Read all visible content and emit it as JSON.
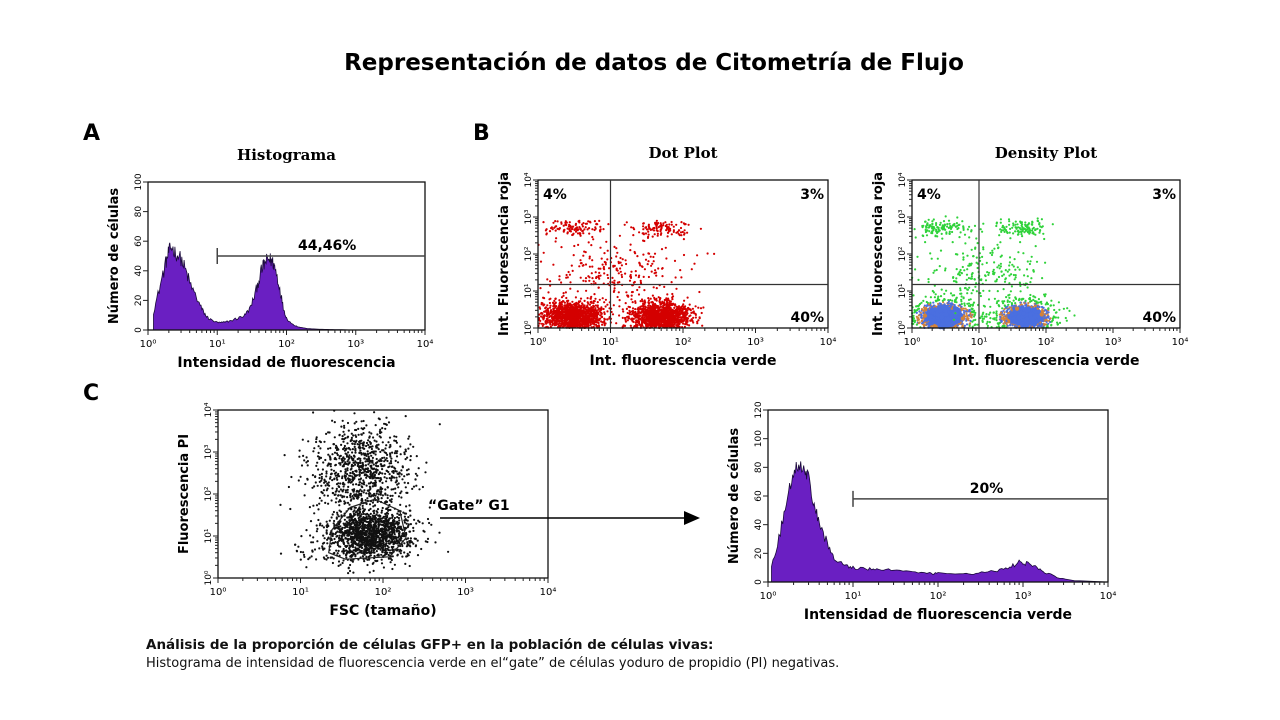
{
  "page": {
    "title": "Representación de datos de Citometría de Flujo",
    "caption_bold": "Análisis de la proporción de células GFP+ en la población de células vivas:",
    "caption_text": "Histograma de intensidad de fluorescencia verde en el“gate” de células yoduro de propidio (PI) negativas."
  },
  "colors": {
    "histogram_fill": "#6a1fc2",
    "dot_plot_red": "#d40000",
    "density_green": "#2fd23a",
    "density_blue": "#4a6fe0",
    "density_orange": "#d2823a",
    "scatter_black": "#111111"
  },
  "chart_data": [
    {
      "panel": "A",
      "type": "area",
      "subtitle": "Histograma",
      "xlabel": "Intensidad de  fluorescencia",
      "ylabel": "Número de células",
      "x_scale": "log",
      "xlim": [
        1,
        10000
      ],
      "ylim": [
        0,
        100
      ],
      "x_ticks": [
        "10⁰",
        "10¹",
        "10²",
        "10³",
        "10⁴"
      ],
      "y_ticks": [
        "0",
        "20",
        "40",
        "60",
        "80",
        "100"
      ],
      "series": [
        {
          "x": [
            1.2,
            1.5,
            1.8,
            2.0,
            2.2,
            2.5,
            3.0,
            3.5,
            4.0,
            5,
            6,
            7,
            8,
            10,
            12,
            15,
            20,
            25,
            30,
            35,
            40,
            45,
            50,
            55,
            60,
            65,
            70,
            80,
            90,
            100,
            120,
            150,
            200,
            300,
            500,
            1000
          ],
          "values": [
            12,
            30,
            45,
            53,
            56,
            52,
            48,
            40,
            32,
            22,
            14,
            9,
            7,
            5,
            5,
            6,
            8,
            10,
            15,
            24,
            34,
            42,
            46,
            48,
            47,
            45,
            40,
            28,
            15,
            8,
            4,
            2,
            1,
            0.5,
            0.3,
            0
          ]
        }
      ],
      "gate": {
        "from": 10,
        "to": 10000,
        "label": "44,46%",
        "y": 50
      }
    },
    {
      "panel": "B",
      "type": "scatter",
      "subtitle": "Dot Plot",
      "xlabel": "Int. fluorescencia verde",
      "ylabel": "Int. Fluorescencia roja",
      "x_scale": "log",
      "y_scale": "log",
      "xlim": [
        1,
        10000
      ],
      "ylim": [
        1,
        10000
      ],
      "x_ticks": [
        "10⁰",
        "10¹",
        "10²",
        "10³",
        "10⁴"
      ],
      "y_ticks": [
        "10⁰",
        "10¹",
        "10²",
        "10³",
        "10⁴"
      ],
      "quadrant_lines": {
        "x": 10,
        "y": 15
      },
      "quadrant_labels": {
        "upper_left": "4%",
        "upper_right": "3%",
        "lower_right": "40%"
      },
      "clusters": [
        {
          "center": [
            3,
            2
          ],
          "spread": [
            0.22,
            0.22
          ],
          "n": 1400,
          "color": "red"
        },
        {
          "center": [
            50,
            2
          ],
          "spread": [
            0.2,
            0.2
          ],
          "n": 1400,
          "color": "red"
        },
        {
          "center": [
            3,
            500
          ],
          "spread": [
            0.2,
            0.12
          ],
          "n": 110,
          "color": "red"
        },
        {
          "center": [
            45,
            480
          ],
          "spread": [
            0.2,
            0.12
          ],
          "n": 110,
          "color": "red"
        },
        {
          "center": [
            12,
            30
          ],
          "spread": [
            0.45,
            0.45
          ],
          "n": 240,
          "color": "red"
        }
      ]
    },
    {
      "panel": "B",
      "type": "scatter",
      "subtitle": "Density Plot",
      "xlabel": "Int. fluorescencia verde",
      "ylabel": "Int. Fluorescencia roja",
      "x_scale": "log",
      "y_scale": "log",
      "xlim": [
        1,
        10000
      ],
      "ylim": [
        1,
        10000
      ],
      "x_ticks": [
        "10⁰",
        "10¹",
        "10²",
        "10³",
        "10⁴"
      ],
      "y_ticks": [
        "10⁰",
        "10¹",
        "10²",
        "10³",
        "10⁴"
      ],
      "quadrant_lines": {
        "x": 10,
        "y": 15
      },
      "quadrant_labels": {
        "upper_left": "4%",
        "upper_right": "3%",
        "lower_right": "40%"
      },
      "clusters": [
        {
          "center": [
            3,
            2
          ],
          "spread": [
            0.24,
            0.24
          ],
          "n": 900,
          "color": "density"
        },
        {
          "center": [
            50,
            2
          ],
          "spread": [
            0.22,
            0.22
          ],
          "n": 900,
          "color": "density"
        },
        {
          "center": [
            3,
            500
          ],
          "spread": [
            0.2,
            0.12
          ],
          "n": 120,
          "color": "green"
        },
        {
          "center": [
            45,
            480
          ],
          "spread": [
            0.2,
            0.12
          ],
          "n": 120,
          "color": "green"
        },
        {
          "center": [
            12,
            30
          ],
          "spread": [
            0.45,
            0.45
          ],
          "n": 220,
          "color": "green"
        }
      ]
    },
    {
      "panel": "C",
      "type": "scatter",
      "subtitle": "",
      "xlabel": "FSC (tamaño)",
      "ylabel": "Fluorescencia PI",
      "x_scale": "log",
      "y_scale": "log",
      "xlim": [
        1,
        10000
      ],
      "ylim": [
        1,
        10000
      ],
      "x_ticks": [
        "10⁰",
        "10¹",
        "10²",
        "10³",
        "10⁴"
      ],
      "y_ticks": [
        "10⁰",
        "10¹",
        "10²",
        "10³",
        "10⁴"
      ],
      "gate_label": "“Gate” G1",
      "clusters": [
        {
          "center": [
            70,
            12
          ],
          "spread": [
            0.25,
            0.28
          ],
          "n": 1300,
          "color": "black"
        },
        {
          "center": [
            55,
            400
          ],
          "spread": [
            0.3,
            0.55
          ],
          "n": 900,
          "color": "black"
        },
        {
          "center": [
            40,
            4
          ],
          "spread": [
            0.35,
            0.25
          ],
          "n": 150,
          "color": "black"
        }
      ]
    },
    {
      "panel": "C",
      "type": "area",
      "subtitle": "",
      "xlabel": "Intensidad de fluorescencia verde",
      "ylabel": "Número de células",
      "x_scale": "log",
      "xlim": [
        1,
        10000
      ],
      "ylim": [
        0,
        120
      ],
      "x_ticks": [
        "10⁰",
        "10¹",
        "10²",
        "10³",
        "10⁴"
      ],
      "y_ticks": [
        "0",
        "20",
        "40",
        "60",
        "80",
        "100",
        "120"
      ],
      "series": [
        {
          "x": [
            1.1,
            1.4,
            1.7,
            2.0,
            2.3,
            2.7,
            3.0,
            3.5,
            4.0,
            5,
            6,
            8,
            10,
            15,
            20,
            30,
            50,
            80,
            100,
            200,
            300,
            500,
            700,
            900,
            1100,
            1400,
            1800,
            2500,
            4000,
            10000
          ],
          "values": [
            10,
            35,
            60,
            78,
            82,
            80,
            72,
            55,
            42,
            26,
            16,
            11,
            10,
            9,
            9,
            8,
            7,
            6,
            6,
            6,
            6,
            8,
            10,
            14,
            13,
            11,
            7,
            3,
            1,
            0
          ]
        }
      ],
      "gate": {
        "from": 10,
        "to": 10000,
        "label": "20%",
        "y": 58
      }
    }
  ],
  "labels": {
    "panel_a": "A",
    "panel_b": "B",
    "panel_c": "C"
  }
}
